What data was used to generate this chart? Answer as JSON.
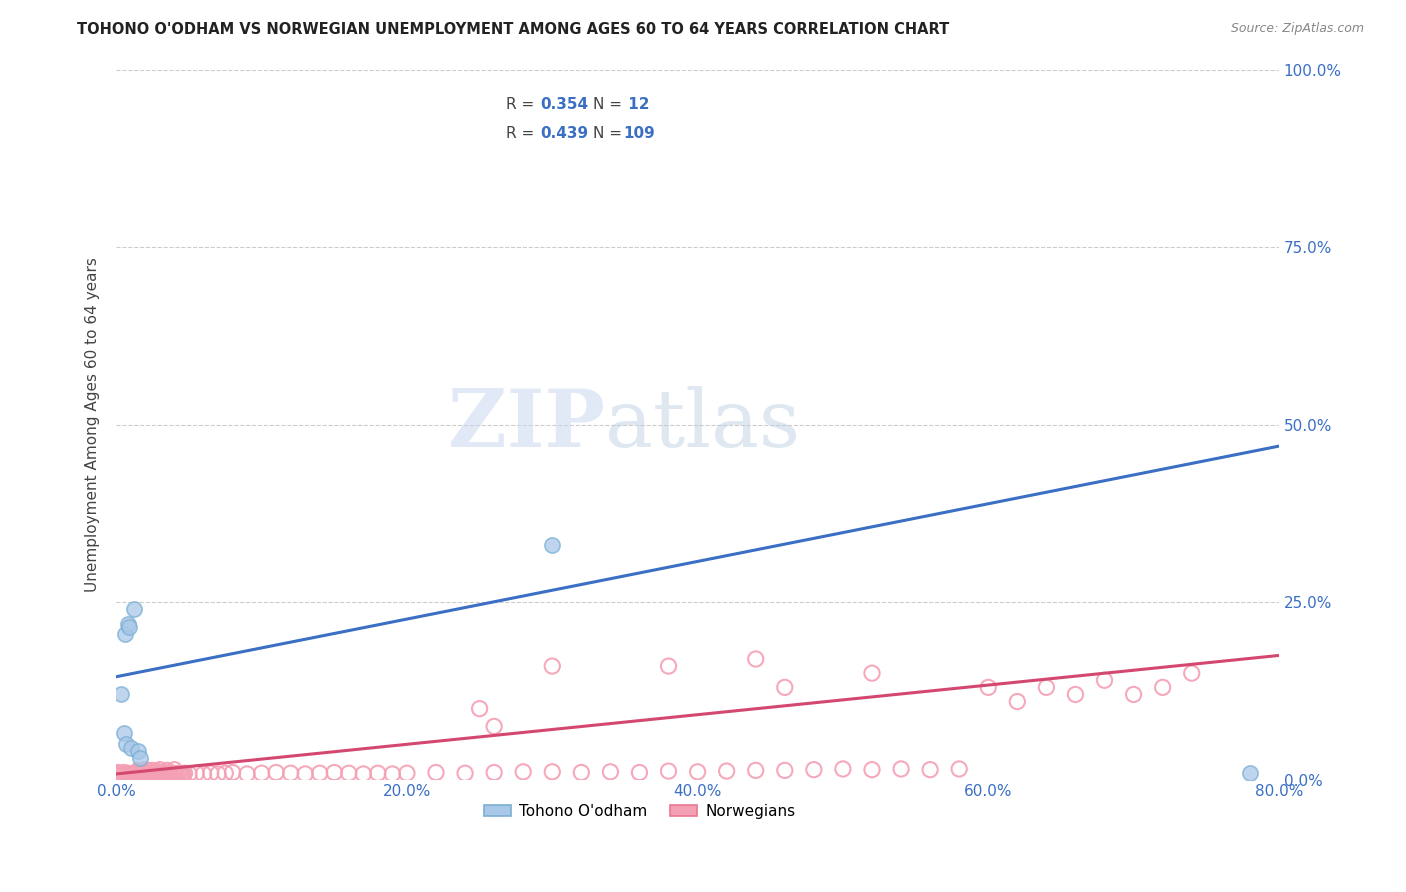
{
  "title": "TOHONO O'ODHAM VS NORWEGIAN UNEMPLOYMENT AMONG AGES 60 TO 64 YEARS CORRELATION CHART",
  "source": "Source: ZipAtlas.com",
  "ylabel": "Unemployment Among Ages 60 to 64 years",
  "xlim": [
    0.0,
    0.8
  ],
  "ylim": [
    0.0,
    1.0
  ],
  "xticks": [
    0.0,
    0.2,
    0.4,
    0.6,
    0.8
  ],
  "yticks": [
    0.0,
    0.25,
    0.5,
    0.75,
    1.0
  ],
  "xtick_labels": [
    "0.0%",
    "20.0%",
    "40.0%",
    "60.0%",
    "80.0%"
  ],
  "ytick_labels": [
    "0.0%",
    "25.0%",
    "50.0%",
    "75.0%",
    "100.0%"
  ],
  "blue_fill": "#a8c8e8",
  "blue_edge": "#7bafd4",
  "blue_line": "#3a6fc4",
  "pink_fill": "#f4a0b4",
  "pink_edge": "#e87890",
  "pink_line": "#d44870",
  "watermark_zip": "ZIP",
  "watermark_atlas": "atlas",
  "blue_scatter_x": [
    0.003,
    0.005,
    0.006,
    0.007,
    0.008,
    0.009,
    0.01,
    0.012,
    0.015,
    0.016,
    0.78,
    0.3
  ],
  "blue_scatter_y": [
    0.12,
    0.065,
    0.205,
    0.05,
    0.22,
    0.215,
    0.045,
    0.24,
    0.04,
    0.03,
    0.01,
    0.33
  ],
  "blue_trend_x": [
    0.0,
    0.8
  ],
  "blue_trend_y": [
    0.145,
    0.47
  ],
  "pink_scatter_x": [
    0.001,
    0.002,
    0.003,
    0.004,
    0.005,
    0.006,
    0.007,
    0.008,
    0.009,
    0.01,
    0.011,
    0.012,
    0.013,
    0.014,
    0.015,
    0.016,
    0.017,
    0.018,
    0.019,
    0.02,
    0.021,
    0.022,
    0.023,
    0.024,
    0.025,
    0.026,
    0.027,
    0.028,
    0.029,
    0.03,
    0.031,
    0.032,
    0.033,
    0.034,
    0.035,
    0.036,
    0.037,
    0.038,
    0.039,
    0.04,
    0.041,
    0.042,
    0.043,
    0.044,
    0.045,
    0.046,
    0.047,
    0.05,
    0.055,
    0.06,
    0.065,
    0.07,
    0.075,
    0.08,
    0.09,
    0.1,
    0.11,
    0.12,
    0.13,
    0.14,
    0.15,
    0.16,
    0.17,
    0.18,
    0.19,
    0.2,
    0.22,
    0.24,
    0.26,
    0.28,
    0.3,
    0.32,
    0.34,
    0.36,
    0.38,
    0.4,
    0.42,
    0.44,
    0.46,
    0.48,
    0.5,
    0.52,
    0.54,
    0.56,
    0.58,
    0.6,
    0.62,
    0.64,
    0.66,
    0.68,
    0.7,
    0.72,
    0.74,
    0.38,
    0.44,
    0.52,
    0.25,
    0.3,
    0.46,
    0.26,
    0.015,
    0.02,
    0.025,
    0.03,
    0.018,
    0.022,
    0.028,
    0.035,
    0.04
  ],
  "pink_scatter_y": [
    0.01,
    0.008,
    0.005,
    0.008,
    0.01,
    0.007,
    0.008,
    0.009,
    0.007,
    0.006,
    0.007,
    0.009,
    0.008,
    0.009,
    0.007,
    0.006,
    0.008,
    0.009,
    0.007,
    0.008,
    0.009,
    0.007,
    0.006,
    0.008,
    0.009,
    0.007,
    0.008,
    0.009,
    0.007,
    0.008,
    0.009,
    0.01,
    0.008,
    0.007,
    0.009,
    0.008,
    0.007,
    0.008,
    0.009,
    0.008,
    0.007,
    0.008,
    0.009,
    0.008,
    0.007,
    0.008,
    0.009,
    0.008,
    0.009,
    0.008,
    0.009,
    0.008,
    0.009,
    0.01,
    0.008,
    0.009,
    0.01,
    0.009,
    0.008,
    0.009,
    0.01,
    0.009,
    0.008,
    0.009,
    0.008,
    0.009,
    0.01,
    0.009,
    0.01,
    0.011,
    0.011,
    0.01,
    0.011,
    0.01,
    0.012,
    0.011,
    0.012,
    0.013,
    0.013,
    0.014,
    0.015,
    0.014,
    0.015,
    0.014,
    0.015,
    0.13,
    0.11,
    0.13,
    0.12,
    0.14,
    0.12,
    0.13,
    0.15,
    0.16,
    0.17,
    0.15,
    0.1,
    0.16,
    0.13,
    0.075,
    0.013,
    0.014,
    0.013,
    0.014,
    0.012,
    0.013,
    0.012,
    0.013,
    0.014
  ],
  "pink_trend_x": [
    0.0,
    0.8
  ],
  "pink_trend_y": [
    0.008,
    0.175
  ]
}
